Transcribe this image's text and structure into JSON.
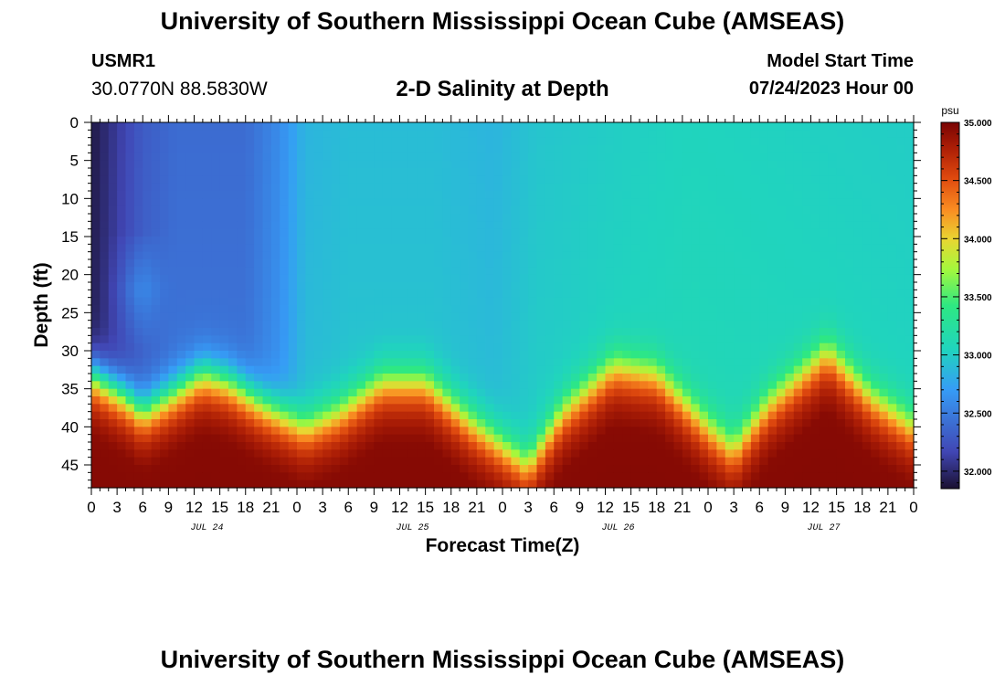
{
  "header": {
    "title": "University of Southern Mississippi Ocean Cube (AMSEAS)",
    "station": "USMR1",
    "coords": "30.0770N  88.5830W",
    "subtitle": "2-D Salinity at Depth",
    "model_start_label": "Model Start Time",
    "model_start_value": "07/24/2023 Hour 00"
  },
  "footer": {
    "title": "University of Southern Mississippi Ocean Cube (AMSEAS)"
  },
  "chart_data": {
    "type": "heatmap",
    "title": "2-D Salinity at Depth",
    "xlabel": "Forecast Time(Z)",
    "ylabel": "Depth (ft)",
    "x_range_hours": [
      0,
      96
    ],
    "ylim": [
      0,
      48
    ],
    "y_ticks": [
      0,
      5,
      10,
      15,
      20,
      25,
      30,
      35,
      40,
      45
    ],
    "x_tick_labels": [
      "0",
      "3",
      "6",
      "9",
      "12",
      "15",
      "18",
      "21",
      "0",
      "3",
      "6",
      "9",
      "12",
      "15",
      "18",
      "21",
      "0",
      "3",
      "6",
      "9",
      "12",
      "15",
      "18",
      "21",
      "0",
      "3",
      "6",
      "9",
      "12",
      "15",
      "18",
      "21",
      "0"
    ],
    "day_labels": [
      "JUL 24",
      "JUL 25",
      "JUL 26",
      "JUL 27"
    ],
    "colorbar": {
      "unit": "psu",
      "min": 31.85,
      "max": 35.0,
      "ticks": [
        32.0,
        32.5,
        33.0,
        33.5,
        34.0,
        34.5,
        35.0
      ],
      "tick_labels": [
        "32.000",
        "32.500",
        "33.000",
        "33.500",
        "34.000",
        "34.500",
        "35.000"
      ]
    },
    "surface_salinity_by_hour": [
      {
        "hour": 0,
        "value": 31.9
      },
      {
        "hour": 3,
        "value": 32.1
      },
      {
        "hour": 6,
        "value": 32.3
      },
      {
        "hour": 10,
        "value": 32.4
      },
      {
        "hour": 18,
        "value": 32.4
      },
      {
        "hour": 22,
        "value": 32.6
      },
      {
        "hour": 25,
        "value": 32.85
      },
      {
        "hour": 30,
        "value": 32.9
      },
      {
        "hour": 40,
        "value": 32.9
      },
      {
        "hour": 47,
        "value": 32.85
      },
      {
        "hour": 52,
        "value": 32.95
      },
      {
        "hour": 60,
        "value": 33.0
      },
      {
        "hour": 70,
        "value": 33.05
      },
      {
        "hour": 96,
        "value": 33.0
      }
    ],
    "halocline_depth_ft_by_hour": [
      {
        "hour": 0,
        "value": 33
      },
      {
        "hour": 4,
        "value": 36
      },
      {
        "hour": 6,
        "value": 38
      },
      {
        "hour": 9,
        "value": 36
      },
      {
        "hour": 13,
        "value": 33
      },
      {
        "hour": 16,
        "value": 34
      },
      {
        "hour": 20,
        "value": 37
      },
      {
        "hour": 25,
        "value": 40
      },
      {
        "hour": 29,
        "value": 38
      },
      {
        "hour": 34,
        "value": 34
      },
      {
        "hour": 39,
        "value": 34
      },
      {
        "hour": 44,
        "value": 39
      },
      {
        "hour": 51,
        "value": 45
      },
      {
        "hour": 55,
        "value": 38
      },
      {
        "hour": 61,
        "value": 32
      },
      {
        "hour": 66,
        "value": 33
      },
      {
        "hour": 72,
        "value": 40
      },
      {
        "hour": 75,
        "value": 43
      },
      {
        "hour": 79,
        "value": 37
      },
      {
        "hour": 86,
        "value": 30
      },
      {
        "hour": 91,
        "value": 36
      },
      {
        "hour": 96,
        "value": 40
      }
    ]
  }
}
